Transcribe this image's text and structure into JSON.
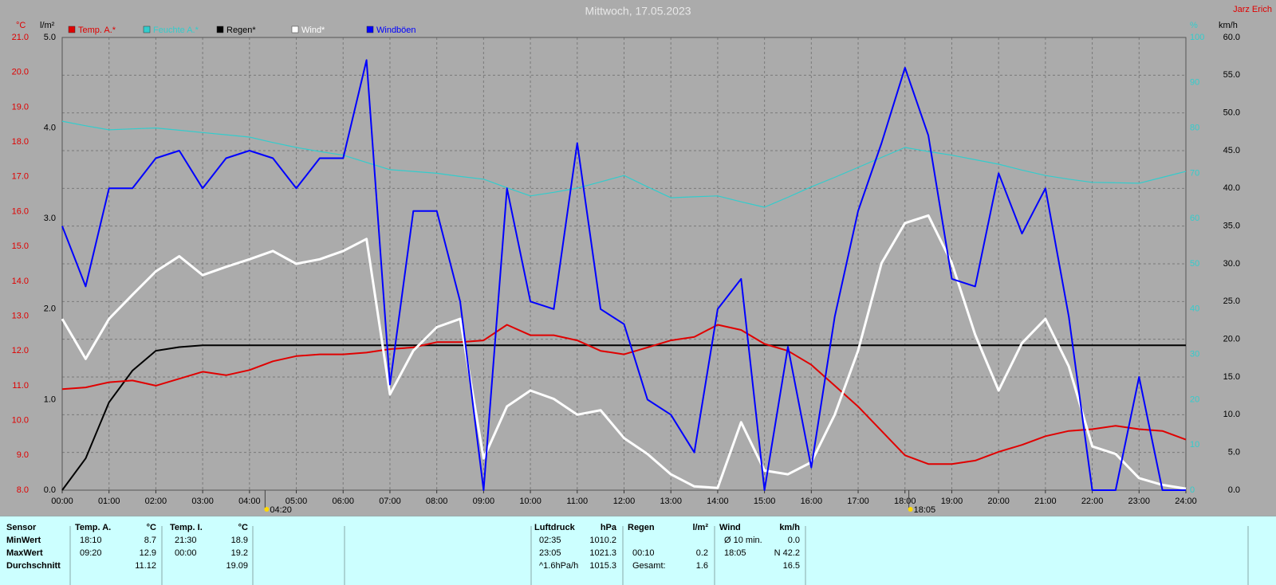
{
  "chart_data": {
    "type": "line",
    "title": "Mittwoch, 17.05.2023",
    "author": "Jarz Erich",
    "units": {
      "y": "°C",
      "y2": "l/m²",
      "y3": "%",
      "y4": "km/h"
    },
    "x": [
      0,
      0.5,
      1,
      1.5,
      2,
      2.5,
      3,
      3.5,
      4,
      4.5,
      5,
      5.5,
      6,
      6.5,
      7,
      7.5,
      8,
      8.5,
      9,
      9.5,
      10,
      10.5,
      11,
      11.5,
      12,
      12.5,
      13,
      13.5,
      14,
      14.5,
      15,
      15.5,
      16,
      16.5,
      17,
      17.5,
      18,
      18.5,
      19,
      19.5,
      20,
      20.5,
      21,
      21.5,
      22,
      22.5,
      23,
      23.5,
      24
    ],
    "xlim": [
      0,
      24
    ],
    "xticks": [
      {
        "value": 0,
        "label": "00:00"
      },
      {
        "value": 1,
        "label": "01:00"
      },
      {
        "value": 2,
        "label": "02:00"
      },
      {
        "value": 3,
        "label": "03:00"
      },
      {
        "value": 4,
        "label": "04:00"
      },
      {
        "value": 5,
        "label": "05:00"
      },
      {
        "value": 6,
        "label": "06:00"
      },
      {
        "value": 7,
        "label": "07:00"
      },
      {
        "value": 8,
        "label": "08:00"
      },
      {
        "value": 9,
        "label": "09:00"
      },
      {
        "value": 10,
        "label": "10:00"
      },
      {
        "value": 11,
        "label": "11:00"
      },
      {
        "value": 12,
        "label": "12:00"
      },
      {
        "value": 13,
        "label": "13:00"
      },
      {
        "value": 14,
        "label": "14:00"
      },
      {
        "value": 15,
        "label": "15:00"
      },
      {
        "value": 16,
        "label": "16:00"
      },
      {
        "value": 17,
        "label": "17:00"
      },
      {
        "value": 18,
        "label": "18:00"
      },
      {
        "value": 19,
        "label": "19:00"
      },
      {
        "value": 20,
        "label": "20:00"
      },
      {
        "value": 21,
        "label": "21:00"
      },
      {
        "value": 22,
        "label": "22:00"
      },
      {
        "value": 23,
        "label": "23:00"
      },
      {
        "value": 24,
        "label": "24:00"
      }
    ],
    "markers": [
      {
        "value": 4.333,
        "label": "04:20"
      },
      {
        "value": 18.083,
        "label": "18:05"
      }
    ],
    "ylim": [
      8,
      21
    ],
    "yticks": [
      {
        "value": 8,
        "label": "8.0"
      },
      {
        "value": 9,
        "label": "9.0"
      },
      {
        "value": 10,
        "label": "10.0"
      },
      {
        "value": 11,
        "label": "11.0"
      },
      {
        "value": 12,
        "label": "12.0"
      },
      {
        "value": 13,
        "label": "13.0"
      },
      {
        "value": 14,
        "label": "14.0"
      },
      {
        "value": 15,
        "label": "15.0"
      },
      {
        "value": 16,
        "label": "16.0"
      },
      {
        "value": 17,
        "label": "17.0"
      },
      {
        "value": 18,
        "label": "18.0"
      },
      {
        "value": 19,
        "label": "19.0"
      },
      {
        "value": 20,
        "label": "20.0"
      },
      {
        "value": 21,
        "label": "21.0"
      }
    ],
    "y2lim": [
      0,
      5
    ],
    "y2ticks": [
      {
        "value": 0,
        "label": "0.0"
      },
      {
        "value": 1,
        "label": "1.0"
      },
      {
        "value": 2,
        "label": "2.0"
      },
      {
        "value": 3,
        "label": "3.0"
      },
      {
        "value": 4,
        "label": "4.0"
      },
      {
        "value": 5,
        "label": "5.0"
      }
    ],
    "y3lim": [
      0,
      100
    ],
    "y3ticks": [
      0,
      10,
      20,
      30,
      40,
      50,
      60,
      70,
      80,
      90,
      100
    ],
    "y4lim": [
      0,
      60
    ],
    "y4ticks": [
      {
        "value": 0,
        "label": "0.0"
      },
      {
        "value": 5,
        "label": "5.0"
      },
      {
        "value": 10,
        "label": "10.0"
      },
      {
        "value": 15,
        "label": "15.0"
      },
      {
        "value": 20,
        "label": "20.0"
      },
      {
        "value": 25,
        "label": "25.0"
      },
      {
        "value": 30,
        "label": "30.0"
      },
      {
        "value": 35,
        "label": "35.0"
      },
      {
        "value": 40,
        "label": "40.0"
      },
      {
        "value": 45,
        "label": "45.0"
      },
      {
        "value": 50,
        "label": "50.0"
      },
      {
        "value": 55,
        "label": "55.0"
      },
      {
        "value": 60,
        "label": "60.0"
      }
    ],
    "grid": true,
    "series": [
      {
        "name": "Temp. A.*",
        "color": "#e00000",
        "axis": "y",
        "values": [
          10.9,
          10.95,
          11.1,
          11.15,
          11.0,
          11.2,
          11.4,
          11.3,
          11.45,
          11.7,
          11.85,
          11.9,
          11.9,
          11.95,
          12.05,
          12.1,
          12.25,
          12.25,
          12.3,
          12.75,
          12.45,
          12.45,
          12.3,
          12.0,
          11.9,
          12.1,
          12.3,
          12.4,
          12.75,
          12.6,
          12.2,
          12.0,
          11.6,
          11.0,
          10.4,
          9.7,
          9.0,
          8.75,
          8.75,
          8.85,
          9.1,
          9.3,
          9.55,
          9.7,
          9.75,
          9.85,
          9.75,
          9.7,
          9.45
        ]
      },
      {
        "name": "Feuchte A.*",
        "color": "#33cccc",
        "axis": "y3",
        "values": [
          81.5,
          80.5,
          79.6,
          79.8,
          80,
          79.5,
          79,
          78.5,
          78,
          76.8,
          75.7,
          74.8,
          74,
          72.4,
          70.8,
          70.4,
          70,
          69.3,
          68.7,
          66.8,
          65,
          65.8,
          66.7,
          68.1,
          69.5,
          67,
          64.6,
          64.8,
          65,
          63.7,
          62.5,
          64.7,
          67,
          69.1,
          71.3,
          73.5,
          75.7,
          74.8,
          74,
          73,
          72,
          70.7,
          69.5,
          68.7,
          68,
          67.9,
          67.8,
          69.1,
          70.4
        ]
      },
      {
        "name": "Regen*",
        "color": "#000000",
        "axis": "y2",
        "values": [
          0,
          0.35,
          0.97,
          1.32,
          1.54,
          1.58,
          1.6,
          1.6,
          1.6,
          1.6,
          1.6,
          1.6,
          1.6,
          1.6,
          1.6,
          1.6,
          1.6,
          1.6,
          1.6,
          1.6,
          1.6,
          1.6,
          1.6,
          1.6,
          1.6,
          1.6,
          1.6,
          1.6,
          1.6,
          1.6,
          1.6,
          1.6,
          1.6,
          1.6,
          1.6,
          1.6,
          1.6,
          1.6,
          1.6,
          1.6,
          1.6,
          1.6,
          1.6,
          1.6,
          1.6,
          1.6,
          1.6,
          1.6,
          1.6
        ]
      },
      {
        "name": "Wind*",
        "color": "#ffffff",
        "axis": "y4",
        "values": [
          22.7,
          17.4,
          22.7,
          25.9,
          29,
          31,
          28.5,
          29.6,
          30.6,
          31.7,
          30,
          30.6,
          31.7,
          33.3,
          12.7,
          18.5,
          21.6,
          22.7,
          4.2,
          11.1,
          13.2,
          12.1,
          10,
          10.6,
          6.9,
          4.8,
          2.1,
          0.5,
          0.3,
          9,
          2.6,
          2.1,
          3.7,
          10,
          18.5,
          30.1,
          35.4,
          36.4,
          30.1,
          20.6,
          13.2,
          19.5,
          22.7,
          16.4,
          5.8,
          4.8,
          1.6,
          0.7,
          0.2
        ]
      },
      {
        "name": "Windböen",
        "color": "#0000ff",
        "axis": "y4",
        "values": [
          35,
          27,
          40,
          40,
          44,
          45,
          40,
          44,
          45,
          44,
          40,
          44,
          44,
          57,
          14,
          37,
          37,
          25,
          0,
          40,
          25,
          24,
          46,
          24,
          22,
          12,
          10,
          5,
          24,
          28,
          0,
          19,
          3,
          23,
          37,
          46,
          56,
          47,
          28,
          27,
          42,
          34,
          40,
          23,
          0,
          0,
          15,
          0,
          0
        ]
      }
    ]
  },
  "panel": {
    "blocks": [
      {
        "header": [
          "Sensor"
        ],
        "rows": [
          [
            "MinWert"
          ],
          [
            "MaxWert"
          ],
          [
            "Durchschnitt"
          ]
        ]
      },
      {
        "header": [
          "Temp. A.",
          "°C"
        ],
        "rows": [
          [
            "18:10",
            "8.7"
          ],
          [
            "09:20",
            "12.9"
          ],
          [
            null,
            "11.12"
          ]
        ]
      },
      {
        "header": [
          "Temp. I.",
          "°C"
        ],
        "rows": [
          [
            "21:30",
            "18.9"
          ],
          [
            "00:00",
            "19.2"
          ],
          [
            null,
            "19.09"
          ]
        ]
      },
      {
        "header": [
          "Luftdruck",
          "hPa"
        ],
        "rows": [
          [
            "02:35",
            "1010.2"
          ],
          [
            "23:05",
            "1021.3"
          ],
          [
            "^1.6hPa/h",
            "1015.3"
          ]
        ]
      },
      {
        "header": [
          "Regen",
          "l/m²"
        ],
        "rows": [
          [
            null,
            null
          ],
          [
            "00:10",
            "0.2"
          ],
          [
            "Gesamt:",
            "1.6"
          ]
        ]
      },
      {
        "header": [
          "Wind",
          "km/h"
        ],
        "rows": [
          [
            "Ø 10 min.",
            "0.0"
          ],
          [
            "18:05",
            "N 42.2"
          ],
          [
            null,
            "16.5"
          ]
        ]
      }
    ]
  }
}
